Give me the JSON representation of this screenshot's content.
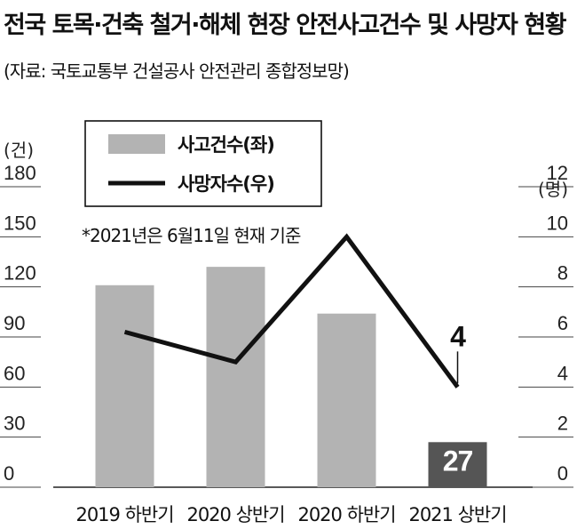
{
  "title": "전국 토목·건축 철거·해체 현장 안전사고건수 및 사망자 현황",
  "source": "(자료: 국토교통부 건설공사 안전관리 종합정보망)",
  "chart_data": {
    "type": "bar",
    "categories": [
      "2019 하반기",
      "2020 상반기",
      "2020 하반기",
      "2021 상반기"
    ],
    "series": [
      {
        "name": "사고건수(좌)",
        "type": "bar",
        "axis": "left",
        "values": [
          121,
          132,
          104,
          27
        ],
        "color": "#b3b3b3",
        "highlight_color": "#555555"
      },
      {
        "name": "사망자수(우)",
        "type": "line",
        "axis": "right",
        "values": [
          6.2,
          5.0,
          10.0,
          4.0
        ],
        "color": "#111111"
      }
    ],
    "left_axis": {
      "unit": "(건)",
      "ticks": [
        "0",
        "30",
        "60",
        "90",
        "120",
        "150",
        "180"
      ],
      "ylim": [
        0,
        180
      ]
    },
    "right_axis": {
      "unit": "(명)",
      "ticks": [
        "0",
        "2",
        "4",
        "6",
        "8",
        "10",
        "12"
      ],
      "ylim": [
        0,
        12
      ]
    },
    "note": "*2021년은 6월11일 현재 기준",
    "callouts": {
      "bar_last": "27",
      "line_last": "4"
    },
    "legend": "top-left"
  }
}
